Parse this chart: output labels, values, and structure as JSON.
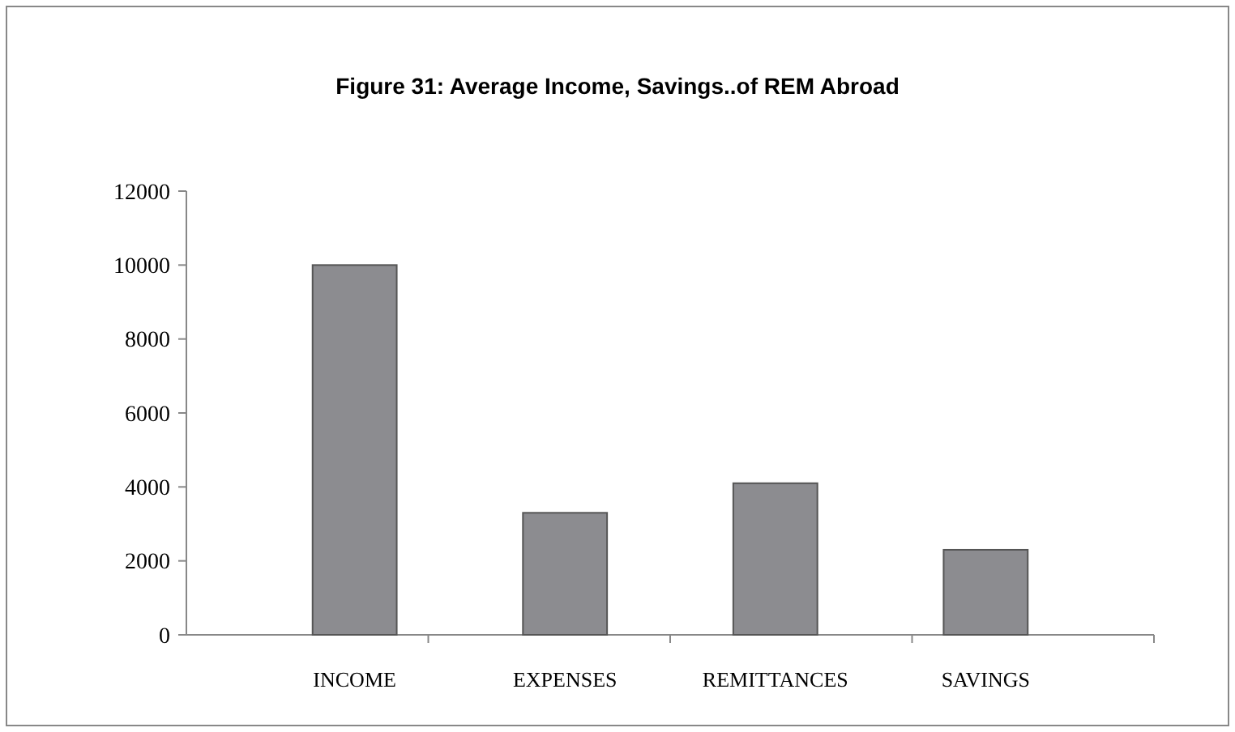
{
  "chart_data": {
    "type": "bar",
    "title": "Figure 31: Average Income, Savings..of REM Abroad",
    "categories": [
      "INCOME",
      "EXPENSES",
      "REMITTANCES",
      "SAVINGS"
    ],
    "values": [
      10000,
      3300,
      4100,
      2300
    ],
    "color": "#8c8c90",
    "ylim": [
      0,
      12000
    ],
    "yticks": [
      0,
      2000,
      4000,
      6000,
      8000,
      10000,
      12000
    ],
    "grid": false
  }
}
